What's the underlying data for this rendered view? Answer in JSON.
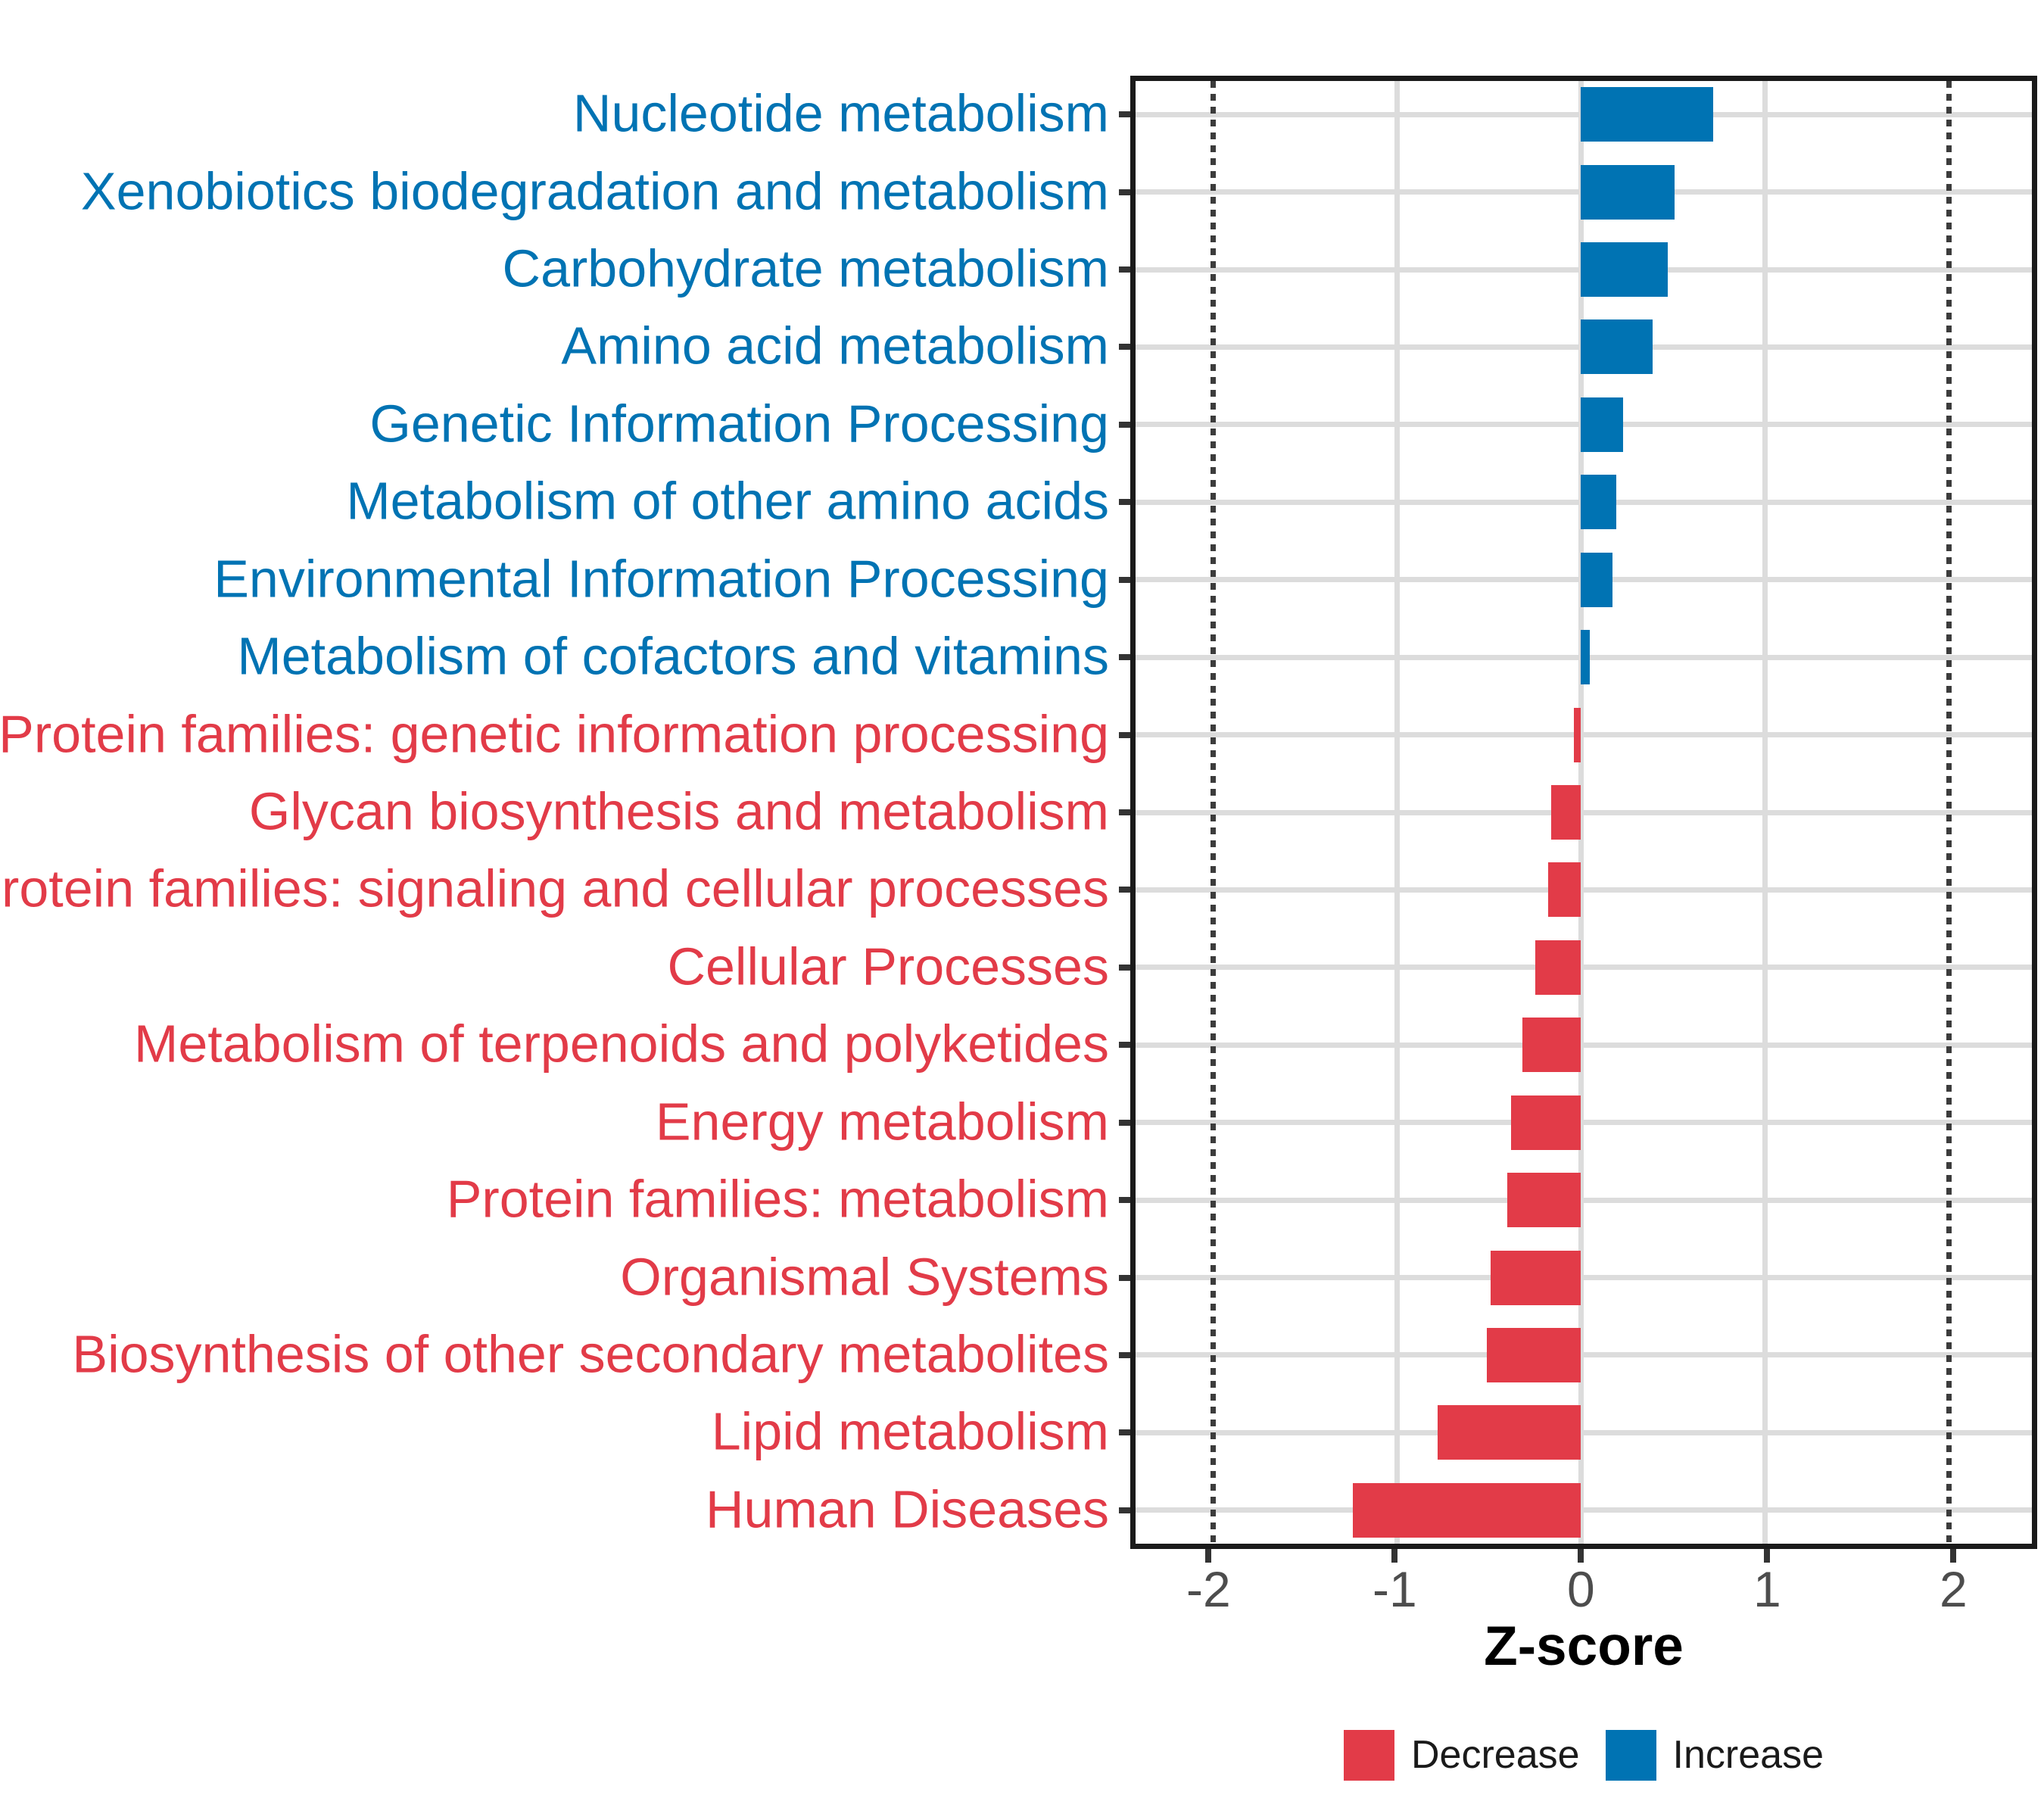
{
  "chart_data": {
    "type": "bar",
    "orientation": "horizontal",
    "title": "",
    "xlabel": "Z-score",
    "ylabel": "",
    "xlim": [
      -2.42,
      2.45
    ],
    "grid": true,
    "x_ticks": [
      -2,
      -1,
      0,
      1,
      2
    ],
    "x_tick_labels": [
      "-2",
      "-1",
      "0",
      "1",
      "2"
    ],
    "solid_gridlines_x": [
      -1,
      0,
      1
    ],
    "dashed_gridlines_x": [
      -2,
      2
    ],
    "legend_position": "bottom",
    "bar_colors": {
      "Increase": "#0073B3",
      "Decrease": "#E23B48"
    },
    "categories": [
      "Nucleotide metabolism",
      "Xenobiotics biodegradation and metabolism",
      "Carbohydrate metabolism",
      "Amino acid metabolism",
      "Genetic Information Processing",
      "Metabolism of other amino acids",
      "Environmental Information Processing",
      "Metabolism of cofactors and vitamins",
      "Protein families: genetic information processing",
      "Glycan biosynthesis and metabolism",
      "Protein families: signaling and cellular processes",
      "Cellular Processes",
      "Metabolism of terpenoids and polyketides",
      "Energy metabolism",
      "Protein families: metabolism",
      "Organismal Systems",
      "Biosynthesis of other secondary metabolites",
      "Lipid metabolism",
      "Human Diseases"
    ],
    "values": [
      0.72,
      0.51,
      0.47,
      0.39,
      0.23,
      0.19,
      0.17,
      0.05,
      -0.04,
      -0.16,
      -0.18,
      -0.25,
      -0.32,
      -0.38,
      -0.4,
      -0.49,
      -0.51,
      -0.78,
      -1.24
    ],
    "directions": [
      "Increase",
      "Increase",
      "Increase",
      "Increase",
      "Increase",
      "Increase",
      "Increase",
      "Increase",
      "Decrease",
      "Decrease",
      "Decrease",
      "Decrease",
      "Decrease",
      "Decrease",
      "Decrease",
      "Decrease",
      "Decrease",
      "Decrease",
      "Decrease"
    ]
  },
  "legend": {
    "items": [
      {
        "label": "Decrease",
        "group": "Decrease",
        "color": "#E23B48"
      },
      {
        "label": "Increase",
        "group": "Increase",
        "color": "#0073B3"
      }
    ]
  }
}
